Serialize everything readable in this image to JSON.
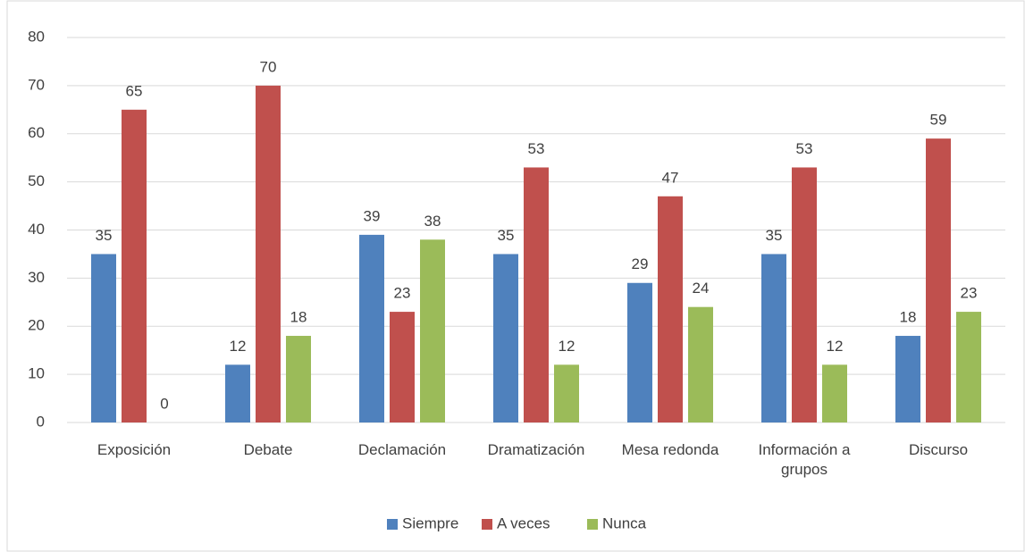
{
  "chart_data": {
    "type": "bar",
    "categories": [
      "Exposición",
      "Debate",
      "Declamación",
      "Dramatización",
      "Mesa redonda",
      "Información a grupos",
      "Discurso"
    ],
    "series": [
      {
        "name": "Siempre",
        "color": "#4f81bd",
        "values": [
          35,
          12,
          39,
          35,
          29,
          35,
          18
        ]
      },
      {
        "name": "A veces",
        "color": "#c0504d",
        "values": [
          65,
          70,
          23,
          53,
          47,
          53,
          59
        ]
      },
      {
        "name": "Nunca",
        "color": "#9bbb59",
        "values": [
          0,
          18,
          38,
          12,
          24,
          12,
          23
        ]
      }
    ],
    "ylim": [
      0,
      80
    ],
    "yticks": [
      0,
      10,
      20,
      30,
      40,
      50,
      60,
      70,
      80
    ],
    "grid": true,
    "legend": "bottom"
  }
}
